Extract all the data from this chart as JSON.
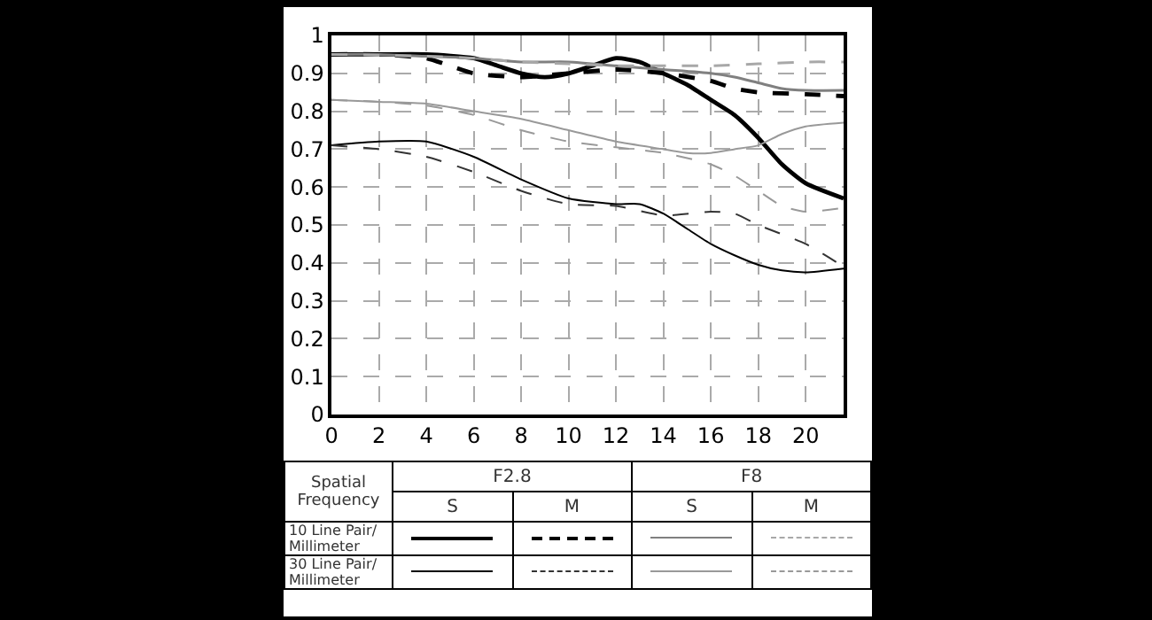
{
  "chart_data": {
    "type": "line",
    "legend_title": "Spatial Frequency",
    "grid": true,
    "marker": "none",
    "annotations": [
      "F2.8",
      "F8",
      "S",
      "M",
      "S",
      "M",
      "10 Line Pair/ Millimeter",
      "30 Line Pair/ Millimeter"
    ],
    "xlim": [
      0,
      21.6
    ],
    "xticks": [
      0,
      2,
      4,
      6,
      8,
      10,
      12,
      14,
      16,
      18,
      20
    ],
    "ylim": [
      0,
      1
    ],
    "yticks": [
      0,
      0.1,
      0.2,
      0.3,
      0.4,
      0.5,
      0.6,
      0.7,
      0.8,
      0.9,
      1
    ],
    "series": [
      {
        "color": "#000000",
        "line_style": "solid",
        "x": [
          0,
          2,
          4,
          6,
          7,
          8,
          9,
          10,
          11,
          12,
          13,
          14,
          15,
          16,
          17,
          18,
          19,
          20,
          21.6
        ],
        "values": [
          0.95,
          0.95,
          0.95,
          0.94,
          0.92,
          0.9,
          0.89,
          0.9,
          0.92,
          0.94,
          0.93,
          0.9,
          0.87,
          0.83,
          0.79,
          0.73,
          0.66,
          0.61,
          0.57
        ]
      },
      {
        "color": "#000000",
        "line_style": "dashed",
        "x": [
          0,
          2,
          4,
          5,
          6,
          8,
          10,
          12,
          14,
          16,
          17,
          18,
          20,
          21.6
        ],
        "values": [
          0.95,
          0.95,
          0.94,
          0.92,
          0.9,
          0.89,
          0.9,
          0.91,
          0.9,
          0.88,
          0.86,
          0.85,
          0.845,
          0.84
        ]
      },
      {
        "color": "#808080",
        "line_style": "solid",
        "x": [
          0,
          2,
          4,
          6,
          8,
          10,
          12,
          14,
          16,
          17,
          18,
          19,
          20,
          21.6
        ],
        "values": [
          0.95,
          0.95,
          0.945,
          0.94,
          0.93,
          0.93,
          0.92,
          0.91,
          0.9,
          0.89,
          0.875,
          0.86,
          0.855,
          0.855
        ]
      },
      {
        "color": "#a8a8a8",
        "line_style": "dashed",
        "x": [
          0,
          4,
          6,
          8,
          10,
          12,
          14,
          16,
          18,
          20,
          21.6
        ],
        "values": [
          0.95,
          0.945,
          0.94,
          0.93,
          0.925,
          0.92,
          0.92,
          0.92,
          0.925,
          0.93,
          0.93
        ]
      },
      {
        "color": "#000000",
        "line_style": "solid",
        "x": [
          0,
          2,
          4,
          6,
          8,
          10,
          12,
          13,
          14,
          15,
          16,
          17,
          18,
          19,
          20,
          21.6
        ],
        "values": [
          0.71,
          0.72,
          0.72,
          0.68,
          0.62,
          0.57,
          0.555,
          0.555,
          0.53,
          0.49,
          0.45,
          0.42,
          0.395,
          0.38,
          0.375,
          0.385
        ]
      },
      {
        "color": "#333333",
        "line_style": "dashed",
        "x": [
          0,
          2,
          4,
          6,
          8,
          10,
          12,
          14,
          16,
          17,
          18,
          20,
          21.6
        ],
        "values": [
          0.71,
          0.7,
          0.68,
          0.64,
          0.59,
          0.555,
          0.55,
          0.525,
          0.535,
          0.53,
          0.5,
          0.45,
          0.39
        ]
      },
      {
        "color": "#999999",
        "line_style": "solid",
        "x": [
          0,
          2,
          4,
          6,
          8,
          10,
          12,
          14,
          15,
          16,
          17,
          18,
          19,
          20,
          21.6
        ],
        "values": [
          0.83,
          0.825,
          0.82,
          0.8,
          0.78,
          0.75,
          0.72,
          0.7,
          0.69,
          0.69,
          0.7,
          0.71,
          0.74,
          0.76,
          0.77
        ]
      },
      {
        "color": "#999999",
        "line_style": "dashed",
        "x": [
          0,
          2,
          4,
          6,
          8,
          10,
          12,
          14,
          16,
          17,
          18,
          19,
          20,
          21.6
        ],
        "values": [
          0.83,
          0.825,
          0.815,
          0.79,
          0.75,
          0.72,
          0.705,
          0.69,
          0.66,
          0.63,
          0.59,
          0.55,
          0.535,
          0.545
        ]
      }
    ]
  }
}
